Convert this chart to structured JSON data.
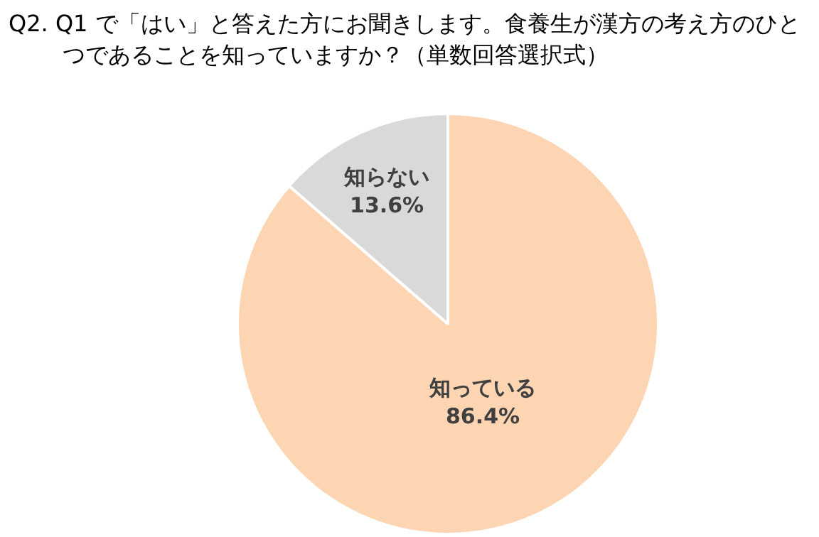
{
  "chart_data": {
    "type": "pie",
    "title": "Q2. Q1 で「はい」と答えた方にお聞きします。食養生が漢方の考え方のひとつであることを知っていますか？（単数回答選択式）",
    "categories": [
      "知っている",
      "知らない"
    ],
    "values": [
      86.4,
      13.6
    ],
    "value_labels": [
      "86.4%",
      "13.6%"
    ],
    "colors": [
      "#fdd5b2",
      "#d9d9d9"
    ],
    "legend": false
  }
}
